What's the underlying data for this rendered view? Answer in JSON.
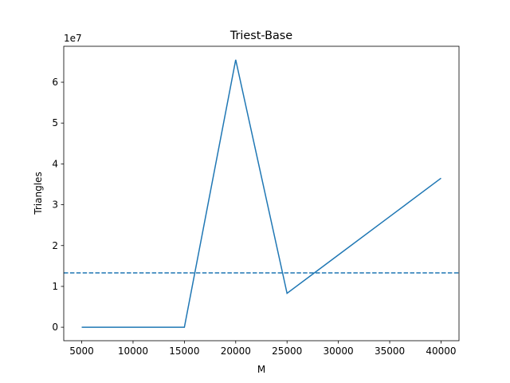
{
  "chart_data": {
    "type": "line",
    "title": "Triest-Base",
    "x_label": "M",
    "y_label": "Triangles",
    "y_offset_label": "1e7",
    "x": [
      5000,
      10000,
      15000,
      20000,
      25000,
      30000,
      35000,
      40000
    ],
    "series": [
      {
        "color": "#1f77b4",
        "values": [
          0,
          0,
          0,
          6.55,
          0.83,
          1.77,
          2.71,
          3.65
        ]
      }
    ],
    "reference_line": {
      "value": 1.33,
      "color": "#1f77b4",
      "style": "dashed"
    },
    "xlim": [
      3250,
      41750
    ],
    "xticks": [
      5000,
      10000,
      15000,
      20000,
      25000,
      30000,
      35000,
      40000
    ],
    "ylim": [
      -0.33,
      6.88
    ],
    "yticks": [
      0,
      1,
      2,
      3,
      4,
      5,
      6
    ],
    "grid": false
  }
}
